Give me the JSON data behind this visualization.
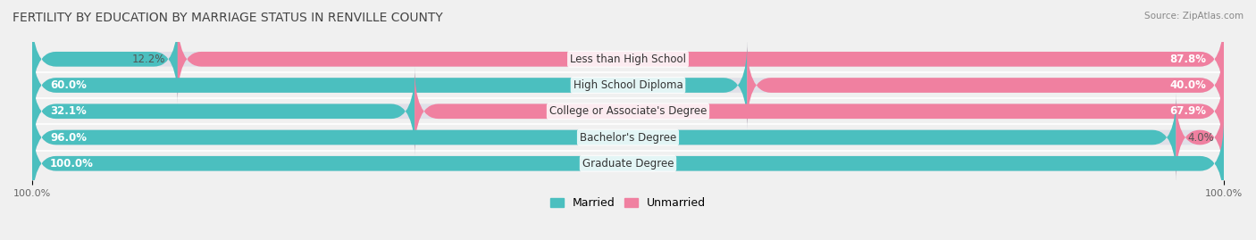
{
  "title": "FERTILITY BY EDUCATION BY MARRIAGE STATUS IN RENVILLE COUNTY",
  "source": "Source: ZipAtlas.com",
  "categories": [
    "Less than High School",
    "High School Diploma",
    "College or Associate's Degree",
    "Bachelor's Degree",
    "Graduate Degree"
  ],
  "married_pct": [
    12.2,
    60.0,
    32.1,
    96.0,
    100.0
  ],
  "unmarried_pct": [
    87.8,
    40.0,
    67.9,
    4.0,
    0.0
  ],
  "married_color": "#4BBFBF",
  "unmarried_color": "#F080A0",
  "bg_color": "#F0F0F0",
  "bar_bg_color": "#E0E0E8",
  "bar_height": 0.55,
  "title_fontsize": 10,
  "label_fontsize": 8.5,
  "legend_fontsize": 9,
  "axis_label_fontsize": 8
}
